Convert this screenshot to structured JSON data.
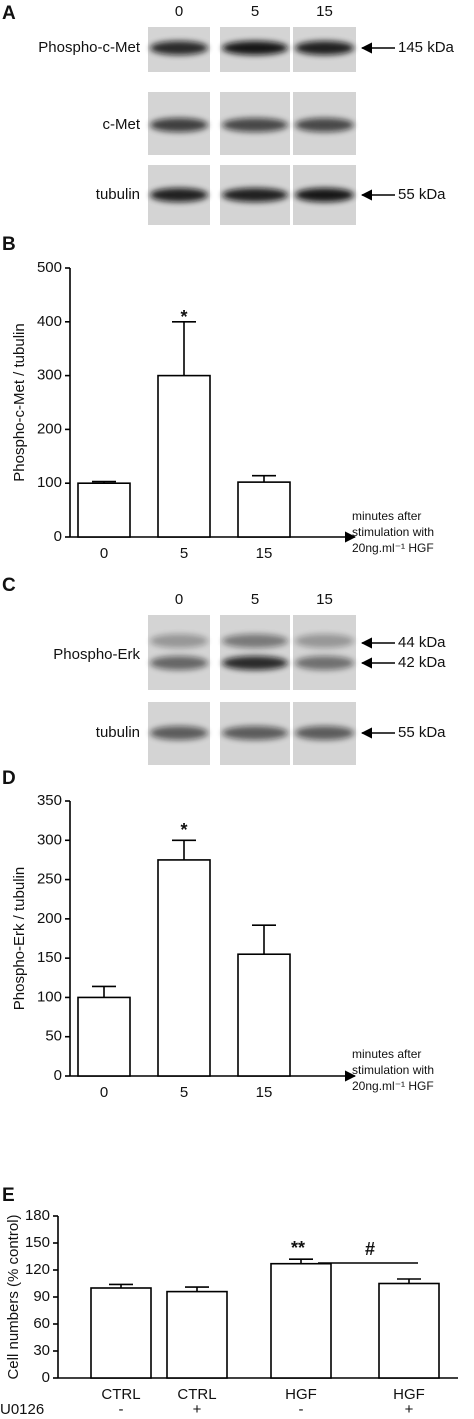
{
  "blot_a": {
    "label": "A",
    "lanes": [
      "0",
      "5",
      "15"
    ],
    "rows": [
      "Phospho-c-Met",
      "c-Met",
      "tubulin"
    ],
    "markers": [
      "145 kDa",
      "55 kDa"
    ]
  },
  "blot_c": {
    "label": "C",
    "lanes": [
      "0",
      "5",
      "15"
    ],
    "rows": [
      "Phospho-Erk",
      "tubulin"
    ],
    "markers": [
      "44 kDa",
      "42 kDa",
      "55 kDa"
    ]
  },
  "chart_data": [
    {
      "type": "bar",
      "panel": "B",
      "ylabel": "Phospho-c-Met / tubulin",
      "xlabel": [
        "minutes after",
        "stimulation with",
        "20ng.ml⁻¹ HGF"
      ],
      "categories": [
        "0",
        "5",
        "15"
      ],
      "values": [
        100,
        300,
        102
      ],
      "errors": [
        3,
        100,
        12
      ],
      "color": "#ffffff",
      "ylim": [
        0,
        500
      ],
      "yticks": [
        0,
        100,
        200,
        300,
        400,
        500
      ],
      "annotations": [
        "*"
      ]
    },
    {
      "type": "bar",
      "panel": "D",
      "ylabel": "Phospho-Erk / tubulin",
      "xlabel": [
        "minutes after",
        "stimulation with",
        "20ng.ml⁻¹ HGF"
      ],
      "categories": [
        "0",
        "5",
        "15"
      ],
      "values": [
        100,
        275,
        155
      ],
      "errors": [
        14,
        25,
        37
      ],
      "color": "#ffffff",
      "ylim": [
        0,
        350
      ],
      "yticks": [
        0,
        50,
        100,
        150,
        200,
        250,
        300,
        350
      ],
      "annotations": [
        "*"
      ]
    },
    {
      "type": "bar",
      "panel": "E",
      "ylabel": "Cell numbers (% control)",
      "categories": [
        "CTRL",
        "CTRL",
        "HGF",
        "HGF"
      ],
      "values": [
        100,
        96,
        127,
        105
      ],
      "errors": [
        4,
        5,
        5,
        5
      ],
      "color": "#ffffff",
      "treatment_label": "U0126",
      "treatment": [
        "-",
        "+",
        "-",
        "+"
      ],
      "ylim": [
        0,
        180
      ],
      "yticks": [
        0,
        30,
        60,
        90,
        120,
        150,
        180
      ],
      "annotations": [
        "**",
        "#"
      ]
    }
  ]
}
